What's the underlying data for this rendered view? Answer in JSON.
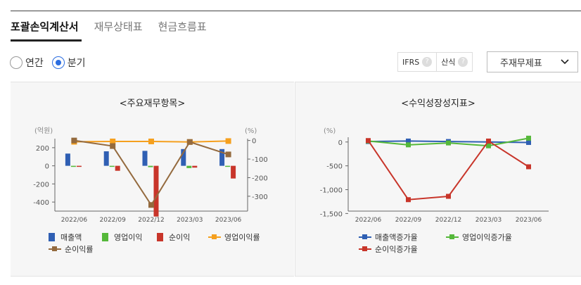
{
  "tabs": [
    {
      "label": "포괄손익계산서",
      "active": true
    },
    {
      "label": "재무상태표",
      "active": false
    },
    {
      "label": "현금흐름표",
      "active": false
    }
  ],
  "period_radios": [
    {
      "label": "연간",
      "selected": false
    },
    {
      "label": "분기",
      "selected": true
    }
  ],
  "options": {
    "ifrs_label": "IFRS",
    "calc_label": "산식",
    "help_glyph": "?"
  },
  "select": {
    "value": "주재무제표",
    "icon": "chevron-down-icon"
  },
  "colors": {
    "sales": "#2f5fb3",
    "op_profit": "#55b83a",
    "net_income": "#c8352a",
    "op_margin": "#f5a01e",
    "net_margin": "#946a3e",
    "accent": "#2b6de0"
  },
  "chart_data": [
    {
      "type": "bar",
      "title": "<주요재무항목>",
      "y_unit_left": "(억원)",
      "y_unit_right": "(%)",
      "categories": [
        "2022/06",
        "2022/09",
        "2022/12",
        "2023/03",
        "2023/06"
      ],
      "yticks_left": [
        "200",
        "0",
        "-200",
        "-400"
      ],
      "yticks_right": [
        "0",
        "-100",
        "-200",
        "-300"
      ],
      "ylim_left": [
        -500,
        300
      ],
      "ylim_right": [
        -380,
        10
      ],
      "series": [
        {
          "name": "매출액",
          "kind": "bar",
          "values": [
            135,
            160,
            165,
            185,
            185
          ]
        },
        {
          "name": "영업이익",
          "kind": "bar",
          "values": [
            -12,
            -10,
            -15,
            -25,
            -5
          ]
        },
        {
          "name": "순이익",
          "kind": "bar",
          "values": [
            0,
            -55,
            -560,
            -20,
            -140
          ]
        },
        {
          "name": "영업이익률",
          "kind": "line",
          "axis": "right",
          "values": [
            -7,
            -5,
            -5,
            -8,
            -3
          ]
        },
        {
          "name": "순이익률",
          "kind": "line",
          "axis": "right",
          "values": [
            0,
            -30,
            -347,
            -8,
            -75
          ]
        }
      ]
    },
    {
      "type": "line",
      "title": "<수익성장성지표>",
      "y_unit": "(%)",
      "categories": [
        "2022/06",
        "2022/09",
        "2022/12",
        "2023/03",
        "2023/06"
      ],
      "yticks": [
        "0",
        "-500",
        "-1,000",
        "-1,500"
      ],
      "ylim": [
        -1450,
        100
      ],
      "series": [
        {
          "name": "매출액증가율",
          "values": [
            10,
            20,
            10,
            0,
            -10
          ]
        },
        {
          "name": "영업이익증가율",
          "values": [
            20,
            -60,
            -20,
            -80,
            80
          ]
        },
        {
          "name": "순이익증가율",
          "values": [
            30,
            -1210,
            -1140,
            20,
            -520
          ]
        }
      ]
    }
  ]
}
